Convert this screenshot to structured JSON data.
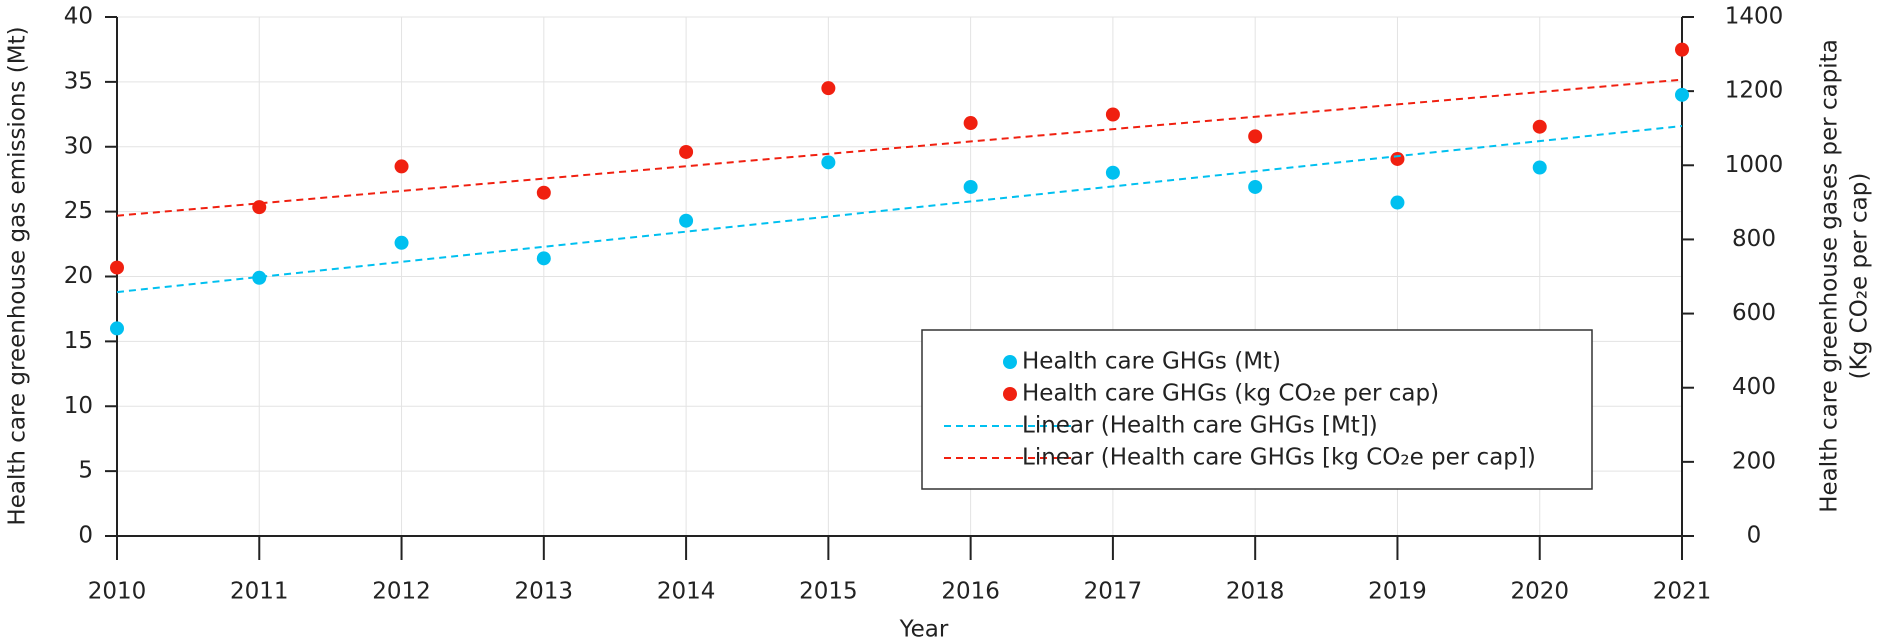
{
  "chart_data": {
    "type": "scatter",
    "xlabel": "Year",
    "ylabel": "Health care greenhouse gas emissions (Mt)",
    "y2label": [
      "Health care greenhouse gases per capita",
      "(Kg CO₂e per cap)"
    ],
    "x": [
      2010,
      2011,
      2012,
      2013,
      2014,
      2015,
      2016,
      2017,
      2018,
      2019,
      2020,
      2021
    ],
    "xlim": [
      2010,
      2021
    ],
    "xticks": [
      2010,
      2011,
      2012,
      2013,
      2014,
      2015,
      2016,
      2017,
      2018,
      2019,
      2020,
      2021
    ],
    "ylim": [
      0,
      40
    ],
    "yticks": [
      0,
      5,
      10,
      15,
      20,
      25,
      30,
      35,
      40
    ],
    "y2lim": [
      0,
      1400
    ],
    "y2ticks": [
      0,
      200,
      400,
      600,
      800,
      1000,
      1200,
      1400
    ],
    "grid": true,
    "legend": "lower-right",
    "series": [
      {
        "name": "Health care GHGs (Mt)",
        "color": "#00c0f0",
        "type": "scatter",
        "axis": "y",
        "values": [
          16.0,
          19.9,
          22.6,
          21.4,
          24.3,
          28.8,
          26.9,
          28.0,
          26.9,
          25.7,
          28.4,
          34.0
        ]
      },
      {
        "name": "Health care GHGs (kg CO₂e per cap)",
        "color": "#f02010",
        "type": "scatter",
        "axis": "y2",
        "values": [
          724,
          887,
          997,
          926,
          1036,
          1208,
          1114,
          1137,
          1078,
          1017,
          1104,
          1312
        ]
      },
      {
        "name": "Linear (Health care GHGs [Mt])",
        "color": "#00c0f0",
        "type": "trend",
        "axis": "y",
        "x": [
          2010,
          2021
        ],
        "values": [
          18.8,
          31.6
        ]
      },
      {
        "name": "Linear (Health care GHGs [kg CO₂e per cap])",
        "color": "#f02010",
        "type": "trend",
        "axis": "y2",
        "x": [
          2010,
          2021
        ],
        "values": [
          864,
          1231
        ]
      }
    ]
  }
}
